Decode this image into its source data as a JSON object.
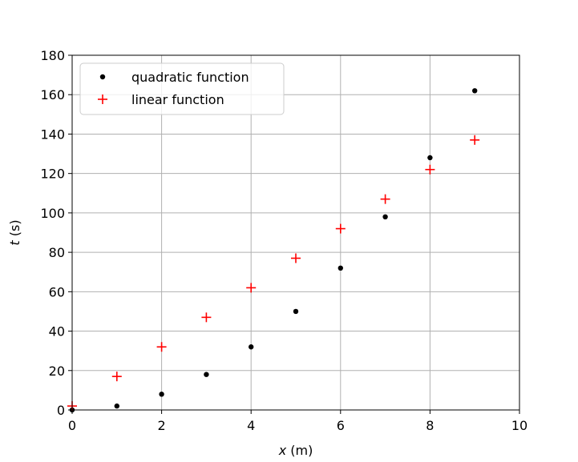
{
  "chart_data": {
    "type": "scatter",
    "xlabel_var": "x",
    "xlabel_unit": " (m)",
    "ylabel_var": "t",
    "ylabel_unit": " (s)",
    "xlim": [
      0,
      10
    ],
    "ylim": [
      0,
      180
    ],
    "xticks": [
      "0",
      "2",
      "4",
      "6",
      "8",
      "10"
    ],
    "yticks": [
      "0",
      "20",
      "40",
      "60",
      "80",
      "100",
      "120",
      "140",
      "160",
      "180"
    ],
    "grid": true,
    "legend_position": "top-left",
    "series": [
      {
        "name": "quadratic function",
        "marker": "dot",
        "color": "#000000",
        "x": [
          0,
          1,
          2,
          3,
          4,
          5,
          6,
          7,
          8,
          9
        ],
        "y": [
          0,
          2,
          8,
          18,
          32,
          50,
          72,
          98,
          128,
          162
        ]
      },
      {
        "name": "linear function",
        "marker": "plus",
        "color": "#ff0000",
        "x": [
          0,
          1,
          2,
          3,
          4,
          5,
          6,
          7,
          8,
          9
        ],
        "y": [
          2,
          17,
          32,
          47,
          62,
          77,
          92,
          107,
          122,
          137
        ]
      }
    ]
  }
}
